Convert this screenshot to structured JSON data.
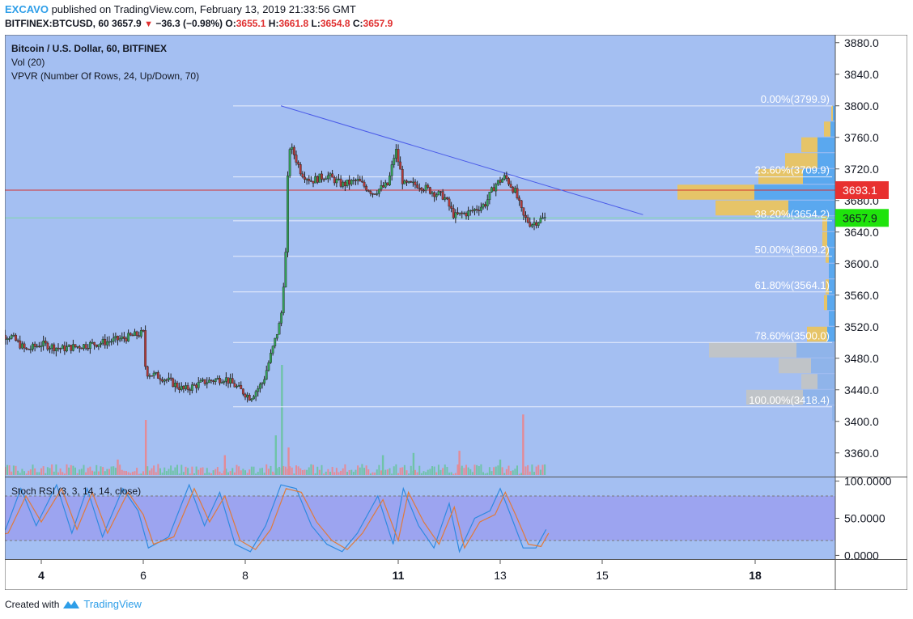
{
  "header": {
    "author": "EXCAVO",
    "published_text": "published on TradingView.com, February 13, 2019 21:33:56 GMT",
    "symbol": "BITFINEX:BTCUSD, 60",
    "last": "3657.9",
    "change": "−36.3 (−0.98%)",
    "o_label": "O:",
    "o": "3655.1",
    "h_label": "H:",
    "h": "3661.8",
    "l_label": "L:",
    "l": "3654.8",
    "c_label": "C:",
    "c": "3657.9"
  },
  "legend": {
    "title": "Bitcoin / U.S. Dollar, 60, BITFINEX",
    "vol": "Vol (20)",
    "vpvr": "VPVR (Number Of Rows, 24, Up/Down, 70)",
    "stoch": "Stoch RSI (3, 3, 14, 14, close)"
  },
  "footer": {
    "created_with": "Created with",
    "brand": "TradingView"
  },
  "colors": {
    "background": "#a4bff2",
    "up": "#33a358",
    "down": "#b33939",
    "trendline": "#4a5ae8",
    "price_line": "#d43030",
    "current_line": "#7ed7a6",
    "vpvr_up": "#5aa8ef",
    "vpvr_down": "#e6c468",
    "vpvr_value_area_out": "#c0c4c8",
    "stoch_band": "#9b9ff0"
  },
  "chart_data": {
    "type": "candlestick",
    "title": "Bitcoin / U.S. Dollar, 60, BITFINEX",
    "ylim": [
      3330,
      3890
    ],
    "y_ticks": [
      "3880.0",
      "3840.0",
      "3800.0",
      "3760.0",
      "3720.0",
      "3680.0",
      "3640.0",
      "3600.0",
      "3560.0",
      "3520.0",
      "3480.0",
      "3440.0",
      "3400.0",
      "3360.0"
    ],
    "x_tick_labels": [
      {
        "label": "4",
        "bold": true,
        "x": 4
      },
      {
        "label": "6",
        "bold": false,
        "x": 6
      },
      {
        "label": "8",
        "bold": false,
        "x": 8
      },
      {
        "label": "11",
        "bold": true,
        "x": 11
      },
      {
        "label": "13",
        "bold": false,
        "x": 13
      },
      {
        "label": "15",
        "bold": false,
        "x": 15
      },
      {
        "label": "18",
        "bold": true,
        "x": 18
      }
    ],
    "price_path": [
      [
        3.0,
        3510
      ],
      [
        3.4,
        3508
      ],
      [
        3.7,
        3490
      ],
      [
        4.0,
        3498
      ],
      [
        4.4,
        3492
      ],
      [
        4.8,
        3496
      ],
      [
        5.2,
        3500
      ],
      [
        5.6,
        3505
      ],
      [
        6.0,
        3512
      ],
      [
        6.05,
        3462
      ],
      [
        6.4,
        3455
      ],
      [
        6.8,
        3440
      ],
      [
        7.2,
        3450
      ],
      [
        7.6,
        3455
      ],
      [
        7.9,
        3440
      ],
      [
        8.1,
        3430
      ],
      [
        8.35,
        3450
      ],
      [
        8.55,
        3495
      ],
      [
        8.7,
        3530
      ],
      [
        8.8,
        3620
      ],
      [
        8.85,
        3750
      ],
      [
        8.95,
        3740
      ],
      [
        9.1,
        3715
      ],
      [
        9.3,
        3705
      ],
      [
        9.6,
        3712
      ],
      [
        9.9,
        3700
      ],
      [
        10.2,
        3705
      ],
      [
        10.5,
        3690
      ],
      [
        10.8,
        3700
      ],
      [
        10.95,
        3745
      ],
      [
        11.1,
        3700
      ],
      [
        11.4,
        3700
      ],
      [
        11.7,
        3690
      ],
      [
        11.9,
        3685
      ],
      [
        12.1,
        3660
      ],
      [
        12.4,
        3665
      ],
      [
        12.7,
        3675
      ],
      [
        12.9,
        3700
      ],
      [
        13.1,
        3710
      ],
      [
        13.3,
        3690
      ],
      [
        13.45,
        3660
      ],
      [
        13.6,
        3650
      ],
      [
        13.8,
        3656
      ],
      [
        13.9,
        3658
      ]
    ],
    "last_price": 3657.9,
    "current_price_label": "3657.9",
    "marked_price": 3693.1,
    "marked_price_label": "3693.1",
    "trendline": {
      "from": [
        8.7,
        3800
      ],
      "to": [
        15.8,
        3662
      ]
    },
    "fibonacci": [
      {
        "label": "0.00%(3799.9)",
        "price": 3799.9
      },
      {
        "label": "23.60%(3709.9)",
        "price": 3709.9
      },
      {
        "label": "38.20%(3654.2)",
        "price": 3654.2
      },
      {
        "label": "50.00%(3609.2)",
        "price": 3609.2
      },
      {
        "label": "61.80%(3564.1)",
        "price": 3564.1
      },
      {
        "label": "78.60%(3500.0)",
        "price": 3500.0
      },
      {
        "label": "100.00%(3418.4)",
        "price": 3418.4
      }
    ],
    "vpvr_rows": [
      {
        "price": 3790,
        "up": 3,
        "down": 2,
        "value_area": true
      },
      {
        "price": 3770,
        "up": 6,
        "down": 8,
        "value_area": true
      },
      {
        "price": 3750,
        "up": 22,
        "down": 20,
        "value_area": true
      },
      {
        "price": 3730,
        "up": 22,
        "down": 40,
        "value_area": true
      },
      {
        "price": 3710,
        "up": 40,
        "down": 55,
        "value_area": true
      },
      {
        "price": 3690,
        "up": 100,
        "down": 95,
        "value_area": true
      },
      {
        "price": 3670,
        "up": 58,
        "down": 90,
        "value_area": true
      },
      {
        "price": 3650,
        "up": 10,
        "down": 6,
        "value_area": true
      },
      {
        "price": 3630,
        "up": 10,
        "down": 6,
        "value_area": true
      },
      {
        "price": 3610,
        "up": 8,
        "down": 4,
        "value_area": true
      },
      {
        "price": 3590,
        "up": 8,
        "down": 0,
        "value_area": true
      },
      {
        "price": 3570,
        "up": 8,
        "down": 4,
        "value_area": true
      },
      {
        "price": 3550,
        "up": 10,
        "down": 4,
        "value_area": true
      },
      {
        "price": 3530,
        "up": 8,
        "down": 0,
        "value_area": true
      },
      {
        "price": 3510,
        "up": 10,
        "down": 25,
        "value_area": true
      },
      {
        "price": 3490,
        "up": 48,
        "down": 108,
        "value_area": false
      },
      {
        "price": 3470,
        "up": 30,
        "down": 40,
        "value_area": false
      },
      {
        "price": 3450,
        "up": 22,
        "down": 20,
        "value_area": false
      },
      {
        "price": 3430,
        "up": 40,
        "down": 70,
        "value_area": false
      },
      {
        "price": 3410,
        "up": 4,
        "down": 0,
        "value_area": false
      }
    ],
    "volume": {
      "spikes": [
        {
          "x": 8.72,
          "v": 100,
          "dir": "up"
        },
        {
          "x": 8.6,
          "v": 36,
          "dir": "up"
        },
        {
          "x": 6.05,
          "v": 50,
          "dir": "down"
        },
        {
          "x": 13.45,
          "v": 55,
          "dir": "down"
        },
        {
          "x": 8.85,
          "v": 25,
          "dir": "down"
        },
        {
          "x": 7.6,
          "v": 18,
          "dir": "down"
        },
        {
          "x": 5.5,
          "v": 14,
          "dir": "down"
        },
        {
          "x": 11.3,
          "v": 20,
          "dir": "up"
        },
        {
          "x": 12.2,
          "v": 22,
          "dir": "down"
        },
        {
          "x": 13.0,
          "v": 14,
          "dir": "up"
        },
        {
          "x": 10.7,
          "v": 18,
          "dir": "up"
        }
      ]
    },
    "stoch_rsi": {
      "ylim": [
        -5,
        105
      ],
      "y_ticks": [
        "100.0000",
        "50.0000",
        "0.0000"
      ],
      "band": [
        20,
        80
      ],
      "k": [
        [
          3.0,
          20
        ],
        [
          3.3,
          35
        ],
        [
          3.6,
          90
        ],
        [
          3.9,
          40
        ],
        [
          4.3,
          95
        ],
        [
          4.6,
          30
        ],
        [
          4.9,
          90
        ],
        [
          5.2,
          25
        ],
        [
          5.6,
          90
        ],
        [
          5.9,
          60
        ],
        [
          6.1,
          10
        ],
        [
          6.5,
          25
        ],
        [
          6.9,
          95
        ],
        [
          7.2,
          40
        ],
        [
          7.5,
          85
        ],
        [
          7.8,
          15
        ],
        [
          8.1,
          5
        ],
        [
          8.4,
          40
        ],
        [
          8.7,
          95
        ],
        [
          9.0,
          90
        ],
        [
          9.3,
          40
        ],
        [
          9.6,
          15
        ],
        [
          9.9,
          5
        ],
        [
          10.2,
          30
        ],
        [
          10.6,
          80
        ],
        [
          10.9,
          15
        ],
        [
          11.1,
          90
        ],
        [
          11.4,
          40
        ],
        [
          11.7,
          10
        ],
        [
          12.0,
          70
        ],
        [
          12.2,
          5
        ],
        [
          12.5,
          50
        ],
        [
          12.8,
          60
        ],
        [
          13.0,
          90
        ],
        [
          13.2,
          55
        ],
        [
          13.45,
          10
        ],
        [
          13.7,
          10
        ],
        [
          13.9,
          35
        ]
      ],
      "d": [
        [
          3.0,
          25
        ],
        [
          3.35,
          30
        ],
        [
          3.7,
          80
        ],
        [
          4.0,
          45
        ],
        [
          4.4,
          90
        ],
        [
          4.7,
          35
        ],
        [
          5.0,
          85
        ],
        [
          5.3,
          30
        ],
        [
          5.7,
          85
        ],
        [
          6.0,
          55
        ],
        [
          6.2,
          15
        ],
        [
          6.6,
          25
        ],
        [
          7.0,
          90
        ],
        [
          7.3,
          45
        ],
        [
          7.6,
          80
        ],
        [
          7.9,
          20
        ],
        [
          8.2,
          8
        ],
        [
          8.5,
          35
        ],
        [
          8.8,
          90
        ],
        [
          9.1,
          85
        ],
        [
          9.4,
          45
        ],
        [
          9.7,
          20
        ],
        [
          10.0,
          8
        ],
        [
          10.3,
          30
        ],
        [
          10.7,
          75
        ],
        [
          11.0,
          20
        ],
        [
          11.2,
          85
        ],
        [
          11.5,
          45
        ],
        [
          11.8,
          15
        ],
        [
          12.1,
          65
        ],
        [
          12.3,
          10
        ],
        [
          12.6,
          45
        ],
        [
          12.9,
          55
        ],
        [
          13.1,
          85
        ],
        [
          13.3,
          55
        ],
        [
          13.55,
          15
        ],
        [
          13.8,
          12
        ],
        [
          13.95,
          30
        ]
      ]
    }
  }
}
